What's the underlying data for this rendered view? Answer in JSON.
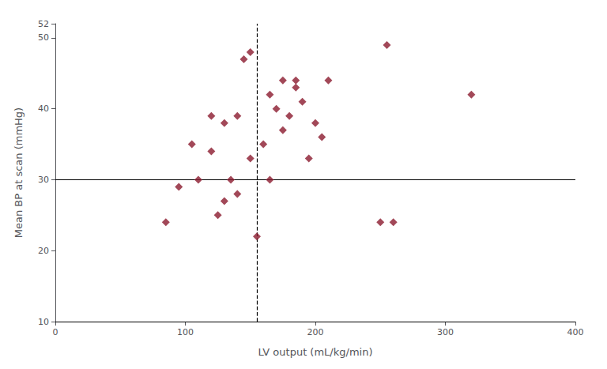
{
  "chart_data": {
    "type": "scatter",
    "x": [
      85,
      95,
      105,
      110,
      120,
      120,
      125,
      130,
      130,
      135,
      140,
      140,
      145,
      150,
      150,
      155,
      160,
      165,
      165,
      170,
      175,
      175,
      180,
      185,
      185,
      190,
      195,
      200,
      205,
      210,
      250,
      255,
      260,
      320
    ],
    "values": [
      24,
      29,
      35,
      30,
      34,
      39,
      25,
      27,
      38,
      30,
      28,
      39,
      47,
      48,
      33,
      22,
      35,
      42,
      30,
      40,
      37,
      44,
      39,
      43,
      44,
      41,
      33,
      38,
      36,
      44,
      24,
      49,
      24,
      42
    ],
    "color": "#8B1A2E",
    "marker": "diamond",
    "xlabel": "LV output (mL/kg/min)",
    "ylabel": "Mean BP at scan (mmHg)",
    "xlim": [
      0,
      400
    ],
    "ylim": [
      10,
      52
    ],
    "xticks": [
      0,
      100,
      200,
      300,
      400
    ],
    "yticks": [
      10,
      20,
      30,
      40,
      50
    ],
    "grid": false,
    "reference_lines": [
      {
        "axis": "y",
        "value": 30,
        "color": "#000000",
        "line_style": "solid"
      },
      {
        "axis": "x",
        "value": 155,
        "color": "#000000",
        "line_style": "dashed"
      },
      {
        "axis": "y",
        "value": 10,
        "color": "#000000",
        "line_style": "solid"
      }
    ]
  }
}
